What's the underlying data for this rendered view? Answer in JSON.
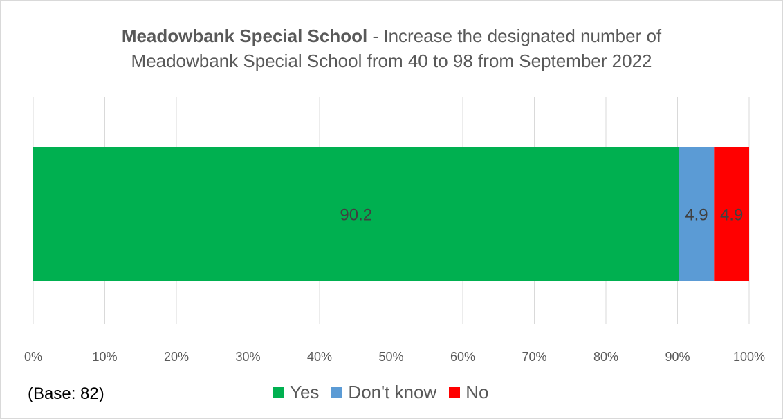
{
  "title": {
    "bold": "Meadowbank Special School",
    "rest": " - Increase the designated number of",
    "line2": "Meadowbank Special School from 40 to 98 from September 2022"
  },
  "base_note": "(Base: 82)",
  "chart_data": {
    "type": "bar",
    "orientation": "horizontal",
    "stacked": "percent",
    "categories": [
      ""
    ],
    "series": [
      {
        "name": "Yes",
        "values": [
          90.2
        ],
        "color": "#00B050",
        "label": "90.2"
      },
      {
        "name": "Don't know",
        "values": [
          4.9
        ],
        "color": "#5B9BD5",
        "label": "4.9"
      },
      {
        "name": "No",
        "values": [
          4.9
        ],
        "color": "#FF0000",
        "label": "4.9"
      }
    ],
    "xlim": [
      0,
      100
    ],
    "xticks": [
      "0%",
      "10%",
      "20%",
      "30%",
      "40%",
      "50%",
      "60%",
      "70%",
      "80%",
      "90%",
      "100%"
    ],
    "grid": true,
    "legend": "bottom"
  }
}
